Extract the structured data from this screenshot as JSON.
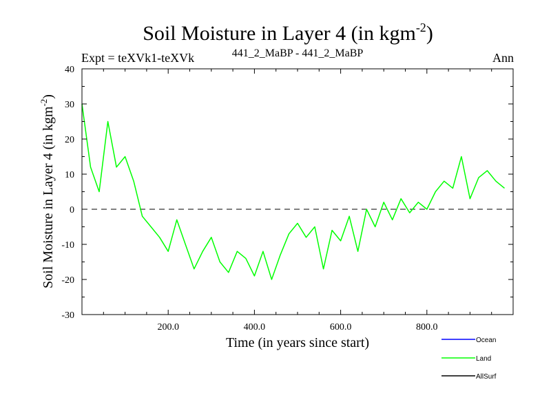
{
  "chart_data": {
    "type": "line",
    "title_main": "Soil Moisture in Layer 4 (in kgm",
    "title_sup": "-2",
    "title_close": ")",
    "subtitle_left": "Expt = teXVk1-teXVk",
    "subtitle_center": "441_2_MaBP - 441_2_MaBP",
    "subtitle_right": "Ann",
    "xlabel": "Time (in years since start)",
    "ylabel_main": "Soil Moisture in Layer 4 (in kgm",
    "ylabel_sup": "-2",
    "ylabel_close": ")",
    "xlim": [
      0,
      1000
    ],
    "ylim": [
      -30,
      40
    ],
    "x_ticks": [
      200,
      400,
      600,
      800
    ],
    "x_tick_labels": [
      "200.0",
      "400.0",
      "600.0",
      "800.0"
    ],
    "y_ticks": [
      -30,
      -20,
      -10,
      0,
      10,
      20,
      30,
      40
    ],
    "y_tick_labels": [
      "-30",
      "-20",
      "-10",
      "0",
      "10",
      "20",
      "30",
      "40"
    ],
    "zero_line": 0,
    "series": [
      {
        "name": "Ocean",
        "color": "#0000ff",
        "values": []
      },
      {
        "name": "Land",
        "color": "#00ff00",
        "x_step": 20,
        "values": [
          30,
          12,
          5,
          25,
          12,
          15,
          8,
          -2,
          -5,
          -8,
          -12,
          -3,
          -10,
          -17,
          -12,
          -8,
          -15,
          -18,
          -12,
          -14,
          -19,
          -12,
          -20,
          -13,
          -7,
          -4,
          -8,
          -5,
          -17,
          -6,
          -9,
          -2,
          -12,
          0,
          -5,
          2,
          -3,
          3,
          -1,
          2,
          0,
          5,
          8,
          6,
          15,
          3,
          9,
          11,
          8,
          6
        ]
      },
      {
        "name": "AllSurf",
        "color": "#000000",
        "values": []
      }
    ],
    "legend": [
      {
        "label": "Ocean",
        "color": "#0000ff"
      },
      {
        "label": "Land",
        "color": "#00ff00"
      },
      {
        "label": "AllSurf",
        "color": "#000000"
      }
    ],
    "legend_position": "bottom-right"
  }
}
